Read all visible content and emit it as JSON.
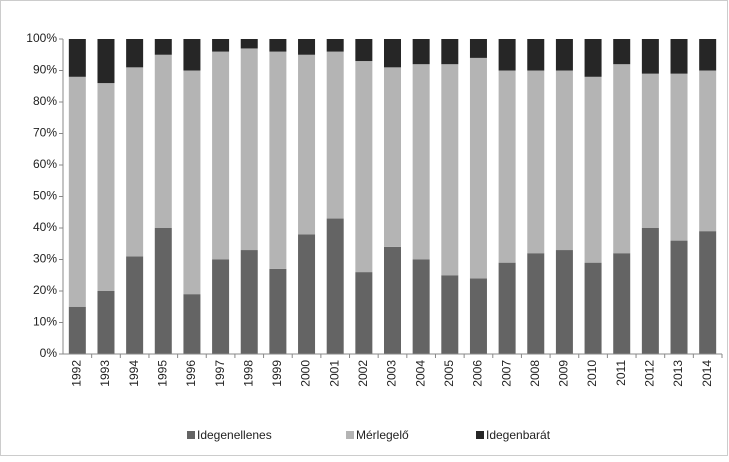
{
  "chart_data": {
    "type": "stacked_bar",
    "categories": [
      "1992",
      "1993",
      "1994",
      "1995",
      "1996",
      "1997",
      "1998",
      "1999",
      "2000",
      "2001",
      "2002",
      "2003",
      "2004",
      "2005",
      "2006",
      "2007",
      "2008",
      "2009",
      "2010",
      "2011",
      "2012",
      "2013",
      "2014"
    ],
    "series": [
      {
        "name": "Idegenellenes",
        "color": "#646464",
        "values": [
          15,
          20,
          31,
          40,
          19,
          30,
          33,
          27,
          38,
          43,
          26,
          34,
          30,
          25,
          24,
          29,
          32,
          33,
          29,
          32,
          40,
          36,
          39
        ]
      },
      {
        "name": "Mérlegelő",
        "color": "#b4b4b4",
        "values": [
          73,
          66,
          60,
          55,
          71,
          66,
          64,
          69,
          57,
          53,
          67,
          57,
          62,
          67,
          70,
          61,
          58,
          57,
          59,
          60,
          49,
          53,
          51
        ]
      },
      {
        "name": "Idegenbarát",
        "color": "#262626",
        "values": [
          12,
          14,
          9,
          5,
          10,
          4,
          3,
          4,
          5,
          4,
          7,
          9,
          8,
          8,
          6,
          10,
          10,
          10,
          12,
          8,
          11,
          11,
          10
        ]
      }
    ],
    "ylim": [
      0,
      100
    ],
    "yticks": [
      {
        "value": 0,
        "label": "0%"
      },
      {
        "value": 10,
        "label": "10%"
      },
      {
        "value": 20,
        "label": "20%"
      },
      {
        "value": 30,
        "label": "30%"
      },
      {
        "value": 40,
        "label": "40%"
      },
      {
        "value": 50,
        "label": "50%"
      },
      {
        "value": 60,
        "label": "60%"
      },
      {
        "value": 70,
        "label": "70%"
      },
      {
        "value": 80,
        "label": "80%"
      },
      {
        "value": 90,
        "label": "90%"
      },
      {
        "value": 100,
        "label": "100%"
      }
    ],
    "legend": "bottom"
  }
}
